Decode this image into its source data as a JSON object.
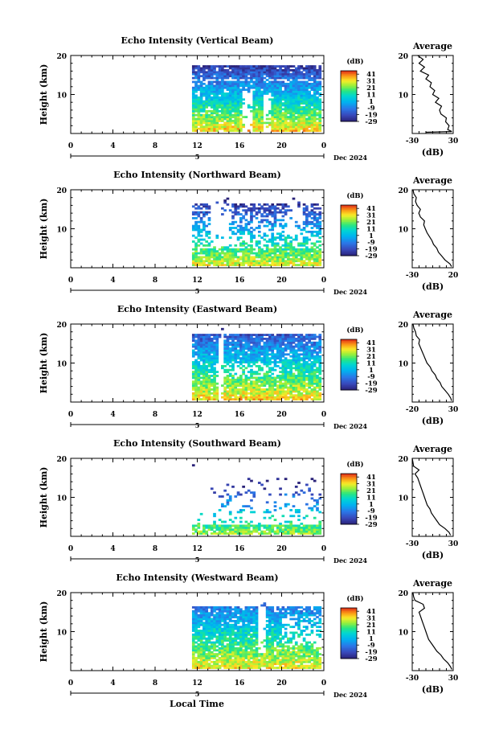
{
  "chart_data": {
    "type": "heatmap",
    "panels": [
      {
        "title": "Echo Intensity (Vertical Beam)",
        "ylabel": "Height (km)",
        "x_ticks": [
          "0",
          "4",
          "8",
          "12",
          "16",
          "20",
          "0"
        ],
        "y_ticks": [
          "10",
          "20"
        ],
        "xlim": [
          0,
          24
        ],
        "ylim": [
          0,
          20
        ],
        "date_label": "Dec 2024",
        "day_marker": "5",
        "colorbar": {
          "unit": "(dB)",
          "ticks": [
            "41",
            "31",
            "21",
            "11",
            "1",
            "-9",
            "-19",
            "-29"
          ],
          "range": [
            -29,
            46
          ]
        },
        "average": {
          "title": "Average",
          "xlabel": "(dB)",
          "x_ticks": [
            "-30",
            "30"
          ],
          "y_ticks": [
            "10",
            "20"
          ],
          "xlim": [
            -30,
            30
          ],
          "ylim": [
            0,
            20
          ],
          "profile": [
            {
              "h": 0.3,
              "db": -10
            },
            {
              "h": 0.5,
              "db": 28
            },
            {
              "h": 1.0,
              "db": 22
            },
            {
              "h": 2.0,
              "db": 24
            },
            {
              "h": 3.0,
              "db": 19
            },
            {
              "h": 4.0,
              "db": 20
            },
            {
              "h": 5.0,
              "db": 12
            },
            {
              "h": 6.0,
              "db": 10
            },
            {
              "h": 7.0,
              "db": 13
            },
            {
              "h": 8.0,
              "db": 4
            },
            {
              "h": 9.0,
              "db": 9
            },
            {
              "h": 10.0,
              "db": 0
            },
            {
              "h": 11.0,
              "db": 3
            },
            {
              "h": 12.0,
              "db": -4
            },
            {
              "h": 13.0,
              "db": -2
            },
            {
              "h": 14.0,
              "db": -10
            },
            {
              "h": 15.0,
              "db": -6
            },
            {
              "h": 16.0,
              "db": -18
            },
            {
              "h": 17.0,
              "db": -12
            },
            {
              "h": 18.0,
              "db": -20
            },
            {
              "h": 19.0,
              "db": -14
            },
            {
              "h": 20.0,
              "db": -22
            }
          ]
        }
      },
      {
        "title": "Echo Intensity (Northward Beam)",
        "ylabel": "Height (km)",
        "x_ticks": [
          "0",
          "4",
          "8",
          "12",
          "16",
          "20",
          "0"
        ],
        "y_ticks": [
          "10",
          "20"
        ],
        "xlim": [
          0,
          24
        ],
        "ylim": [
          0,
          20
        ],
        "date_label": "Dec 2024",
        "day_marker": "5",
        "colorbar": {
          "unit": "(dB)",
          "ticks": [
            "41",
            "31",
            "21",
            "11",
            "1",
            "-9",
            "-19",
            "-29"
          ],
          "range": [
            -29,
            46
          ]
        },
        "average": {
          "title": "Average",
          "xlabel": "(dB)",
          "x_ticks": [
            "-30",
            "20"
          ],
          "y_ticks": [
            "10",
            "20"
          ],
          "xlim": [
            -30,
            20
          ],
          "ylim": [
            0,
            20
          ],
          "profile": [
            {
              "h": 0.3,
              "db": 18
            },
            {
              "h": 1.0,
              "db": 16
            },
            {
              "h": 2.0,
              "db": 10
            },
            {
              "h": 3.0,
              "db": 6
            },
            {
              "h": 4.0,
              "db": 2
            },
            {
              "h": 5.0,
              "db": 0
            },
            {
              "h": 6.0,
              "db": -4
            },
            {
              "h": 7.0,
              "db": -6
            },
            {
              "h": 8.0,
              "db": -9
            },
            {
              "h": 9.0,
              "db": -12
            },
            {
              "h": 10.0,
              "db": -14
            },
            {
              "h": 11.0,
              "db": -16
            },
            {
              "h": 12.0,
              "db": -15
            },
            {
              "h": 13.0,
              "db": -20
            },
            {
              "h": 14.0,
              "db": -22
            },
            {
              "h": 15.0,
              "db": -20
            },
            {
              "h": 16.0,
              "db": -24
            },
            {
              "h": 17.0,
              "db": -26
            },
            {
              "h": 18.0,
              "db": -25
            },
            {
              "h": 19.0,
              "db": -28
            },
            {
              "h": 20.0,
              "db": -29
            }
          ]
        }
      },
      {
        "title": "Echo Intensity (Eastward Beam)",
        "ylabel": "Height (km)",
        "x_ticks": [
          "0",
          "4",
          "8",
          "12",
          "16",
          "20",
          "0"
        ],
        "y_ticks": [
          "10",
          "20"
        ],
        "xlim": [
          0,
          24
        ],
        "ylim": [
          0,
          20
        ],
        "date_label": "Dec 2024",
        "day_marker": "5",
        "colorbar": {
          "unit": "(dB)",
          "ticks": [
            "41",
            "31",
            "21",
            "11",
            "1",
            "-9",
            "-19",
            "-29"
          ],
          "range": [
            -29,
            46
          ]
        },
        "average": {
          "title": "Average",
          "xlabel": "(dB)",
          "x_ticks": [
            "-20",
            "30"
          ],
          "y_ticks": [
            "10",
            "20"
          ],
          "xlim": [
            -20,
            30
          ],
          "ylim": [
            0,
            20
          ],
          "profile": [
            {
              "h": 0.3,
              "db": 28
            },
            {
              "h": 1.0,
              "db": 27
            },
            {
              "h": 2.0,
              "db": 24
            },
            {
              "h": 3.0,
              "db": 20
            },
            {
              "h": 4.0,
              "db": 16
            },
            {
              "h": 5.0,
              "db": 14
            },
            {
              "h": 6.0,
              "db": 10
            },
            {
              "h": 7.0,
              "db": 8
            },
            {
              "h": 8.0,
              "db": 4
            },
            {
              "h": 9.0,
              "db": 2
            },
            {
              "h": 10.0,
              "db": -2
            },
            {
              "h": 11.0,
              "db": -4
            },
            {
              "h": 12.0,
              "db": -6
            },
            {
              "h": 13.0,
              "db": -8
            },
            {
              "h": 14.0,
              "db": -10
            },
            {
              "h": 15.0,
              "db": -12
            },
            {
              "h": 16.0,
              "db": -11
            },
            {
              "h": 17.0,
              "db": -15
            },
            {
              "h": 18.0,
              "db": -16
            },
            {
              "h": 19.0,
              "db": -18
            },
            {
              "h": 20.0,
              "db": -19
            }
          ]
        }
      },
      {
        "title": "Echo Intensity (Southward Beam)",
        "ylabel": "Height (km)",
        "x_ticks": [
          "0",
          "4",
          "8",
          "12",
          "16",
          "20",
          "0"
        ],
        "y_ticks": [
          "10",
          "20"
        ],
        "xlim": [
          0,
          24
        ],
        "ylim": [
          0,
          20
        ],
        "date_label": "Dec 2024",
        "day_marker": "5",
        "colorbar": {
          "unit": "(dB)",
          "ticks": [
            "41",
            "31",
            "21",
            "11",
            "1",
            "-9",
            "-19",
            "-29"
          ],
          "range": [
            -29,
            46
          ]
        },
        "average": {
          "title": "Average",
          "xlabel": "(dB)",
          "x_ticks": [
            "-30",
            "30"
          ],
          "y_ticks": [
            "10",
            "20"
          ],
          "xlim": [
            -30,
            30
          ],
          "ylim": [
            0,
            20
          ],
          "profile": [
            {
              "h": 0.3,
              "db": 26
            },
            {
              "h": 1.0,
              "db": 24
            },
            {
              "h": 2.0,
              "db": 18
            },
            {
              "h": 3.0,
              "db": 10
            },
            {
              "h": 4.0,
              "db": 6
            },
            {
              "h": 5.0,
              "db": 2
            },
            {
              "h": 6.0,
              "db": -2
            },
            {
              "h": 7.0,
              "db": -4
            },
            {
              "h": 8.0,
              "db": -8
            },
            {
              "h": 9.0,
              "db": -10
            },
            {
              "h": 10.0,
              "db": -12
            },
            {
              "h": 11.0,
              "db": -14
            },
            {
              "h": 12.0,
              "db": -16
            },
            {
              "h": 13.0,
              "db": -18
            },
            {
              "h": 14.0,
              "db": -20
            },
            {
              "h": 15.0,
              "db": -22
            },
            {
              "h": 16.0,
              "db": -26
            },
            {
              "h": 17.0,
              "db": -20
            },
            {
              "h": 18.0,
              "db": -28
            },
            {
              "h": 19.0,
              "db": -29
            },
            {
              "h": 20.0,
              "db": -30
            }
          ]
        }
      },
      {
        "title": "Echo Intensity (Westward Beam)",
        "ylabel": "Height (km)",
        "x_ticks": [
          "0",
          "4",
          "8",
          "12",
          "16",
          "20",
          "0"
        ],
        "y_ticks": [
          "10",
          "20"
        ],
        "xlim": [
          0,
          24
        ],
        "ylim": [
          0,
          20
        ],
        "date_label": "Dec 2024",
        "day_marker": "5",
        "colorbar": {
          "unit": "(dB)",
          "ticks": [
            "41",
            "31",
            "21",
            "11",
            "1",
            "-9",
            "-19",
            "-29"
          ],
          "range": [
            -29,
            46
          ]
        },
        "average": {
          "title": "Average",
          "xlabel": "(dB)",
          "x_ticks": [
            "-30",
            "30"
          ],
          "y_ticks": [
            "10",
            "20"
          ],
          "xlim": [
            -30,
            30
          ],
          "ylim": [
            0,
            20
          ],
          "profile": [
            {
              "h": 0.3,
              "db": 28
            },
            {
              "h": 1.0,
              "db": 26
            },
            {
              "h": 2.0,
              "db": 22
            },
            {
              "h": 3.0,
              "db": 16
            },
            {
              "h": 4.0,
              "db": 12
            },
            {
              "h": 5.0,
              "db": 6
            },
            {
              "h": 6.0,
              "db": 2
            },
            {
              "h": 7.0,
              "db": -2
            },
            {
              "h": 8.0,
              "db": -6
            },
            {
              "h": 9.0,
              "db": -8
            },
            {
              "h": 10.0,
              "db": -10
            },
            {
              "h": 11.0,
              "db": -12
            },
            {
              "h": 12.0,
              "db": -14
            },
            {
              "h": 13.0,
              "db": -16
            },
            {
              "h": 14.0,
              "db": -18
            },
            {
              "h": 15.0,
              "db": -20
            },
            {
              "h": 16.0,
              "db": -12
            },
            {
              "h": 17.0,
              "db": -14
            },
            {
              "h": 18.0,
              "db": -26
            },
            {
              "h": 19.0,
              "db": -28
            },
            {
              "h": 20.0,
              "db": -29
            }
          ]
        }
      }
    ],
    "xlabel": "Local Time"
  }
}
